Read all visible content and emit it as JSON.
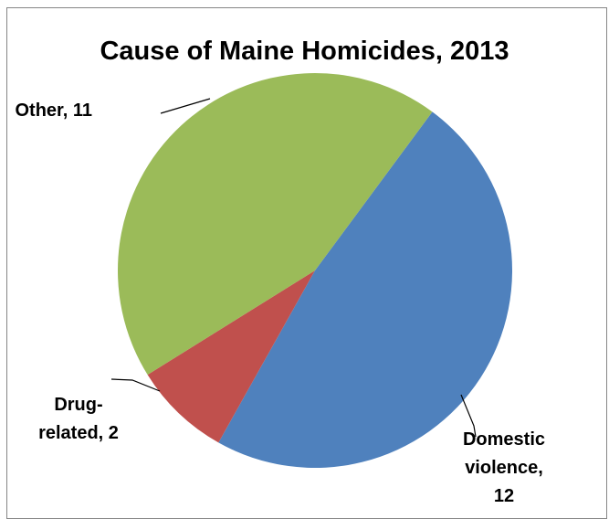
{
  "chart_data": {
    "type": "pie",
    "title": "Cause of Maine Homicides, 2013",
    "slices": [
      {
        "name": "Domestic violence",
        "value": 12,
        "color": "#4F81BD",
        "label_lines": [
          "Domestic",
          "violence,",
          "12"
        ]
      },
      {
        "name": "Drug-related",
        "value": 2,
        "color": "#C0504D",
        "label_lines": [
          "Drug-",
          "related, 2"
        ]
      },
      {
        "name": "Other",
        "value": 11,
        "color": "#9BBB59",
        "label_lines": [
          "Other, 11"
        ]
      }
    ],
    "data_labels": "outside-with-leader-lines",
    "legend": "none"
  }
}
